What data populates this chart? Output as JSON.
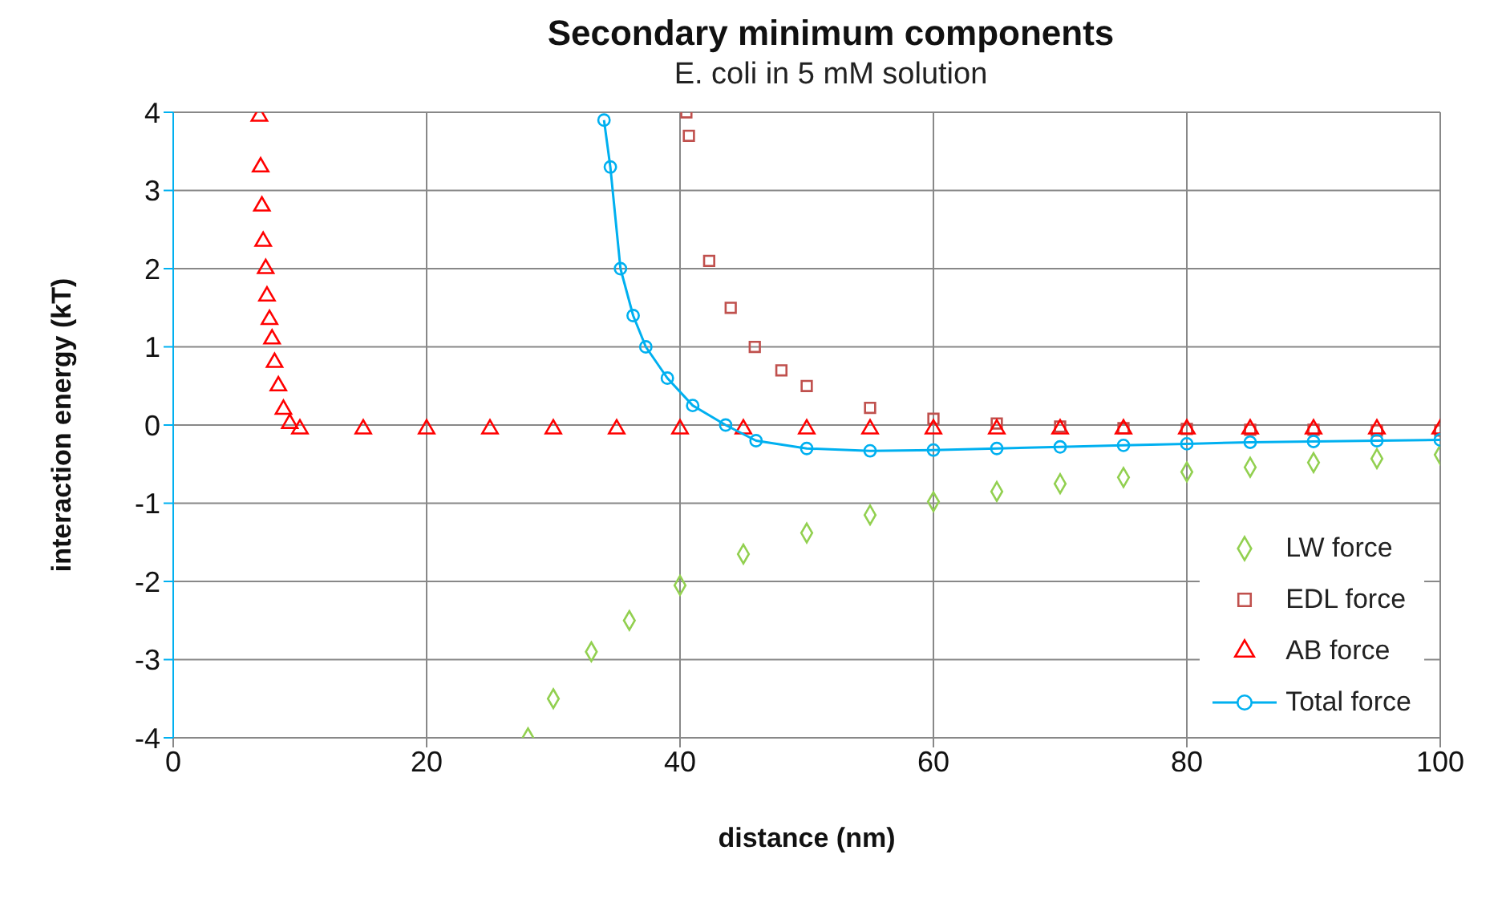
{
  "chart_data": {
    "type": "scatter",
    "title": "Secondary minimum components",
    "subtitle": "E. coli in 5 mM solution",
    "xlabel": "distance (nm)",
    "ylabel": "interaction energy (kT)",
    "xlim": [
      0,
      100
    ],
    "xticks": [
      0,
      20,
      40,
      60,
      80,
      100
    ],
    "ylim": [
      -4,
      4
    ],
    "yticks": [
      -4,
      -3,
      -2,
      -1,
      0,
      1,
      2,
      3,
      4
    ],
    "grid": true,
    "legend": "bottom right",
    "series": [
      {
        "name": "LW force",
        "color": "#92d050",
        "marker": "diamond",
        "x": [
          28,
          30,
          33,
          36,
          40,
          45,
          50,
          55,
          60,
          65,
          70,
          75,
          80,
          85,
          90,
          95,
          100
        ],
        "values": [
          -4,
          -3.5,
          -2.9,
          -2.5,
          -2.05,
          -1.65,
          -1.38,
          -1.15,
          -0.98,
          -0.85,
          -0.75,
          -0.67,
          -0.6,
          -0.54,
          -0.48,
          -0.43,
          -0.38
        ]
      },
      {
        "name": "EDL force",
        "color": "#c0504d",
        "marker": "square",
        "x": [
          40.5,
          40.7,
          42.3,
          44,
          45.9,
          48,
          50,
          55,
          60,
          65,
          70,
          75,
          80,
          85,
          90,
          95,
          100
        ],
        "values": [
          4,
          3.7,
          2.1,
          1.5,
          1,
          0.7,
          0.5,
          0.22,
          0.08,
          0.02,
          -0.02,
          -0.04,
          -0.05,
          -0.06,
          -0.06,
          -0.07,
          -0.07
        ]
      },
      {
        "name": "AB force",
        "color": "#ff0000",
        "marker": "triangle",
        "x": [
          6.8,
          6.9,
          7,
          7.1,
          7.3,
          7.4,
          7.6,
          7.8,
          8,
          8.3,
          8.7,
          9.2,
          10,
          15,
          20,
          25,
          30,
          35,
          40,
          45,
          50,
          55,
          60,
          65,
          70,
          75,
          80,
          85,
          90,
          95,
          100
        ],
        "values": [
          3.95,
          3.3,
          2.8,
          2.35,
          2,
          1.65,
          1.35,
          1.1,
          0.8,
          0.5,
          0.2,
          0.02,
          -0.05,
          -0.05,
          -0.05,
          -0.05,
          -0.05,
          -0.05,
          -0.05,
          -0.05,
          -0.05,
          -0.05,
          -0.05,
          -0.05,
          -0.05,
          -0.05,
          -0.05,
          -0.05,
          -0.05,
          -0.05,
          -0.05
        ]
      },
      {
        "name": "Total force",
        "color": "#00b0f0",
        "type": "line",
        "marker": "circle",
        "x": [
          34,
          34.5,
          35.3,
          36.3,
          37.3,
          39,
          41,
          43.6,
          46,
          50,
          55,
          60,
          65,
          70,
          75,
          80,
          85,
          90,
          95,
          100
        ],
        "values": [
          3.9,
          3.3,
          2,
          1.4,
          1,
          0.6,
          0.25,
          0,
          -0.2,
          -0.3,
          -0.33,
          -0.32,
          -0.3,
          -0.28,
          -0.26,
          -0.24,
          -0.22,
          -0.21,
          -0.2,
          -0.19
        ]
      }
    ]
  }
}
